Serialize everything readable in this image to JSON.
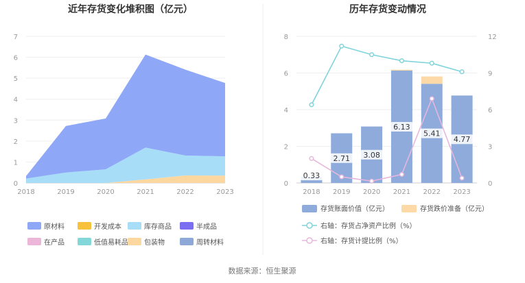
{
  "source_text": "数据来源：恒生聚源",
  "chart_data": [
    {
      "type": "area",
      "title": "近年存货变化堆积图（亿元）",
      "categories": [
        "2018",
        "2019",
        "2020",
        "2021",
        "2022",
        "2023"
      ],
      "ylim": [
        0,
        7
      ],
      "yticks": [
        "0",
        "1",
        "2",
        "3",
        "4",
        "5",
        "6",
        "7"
      ],
      "stacked": true,
      "grid": true,
      "legend_position": "bottom",
      "series": [
        {
          "name": "原材料",
          "color": "#8ea8f7",
          "values": [
            0.12,
            2.22,
            2.43,
            4.44,
            4.1,
            3.5
          ]
        },
        {
          "name": "开发成本",
          "color": "#f8c13c",
          "values": [
            0,
            0,
            0,
            0,
            0,
            0
          ]
        },
        {
          "name": "库存商品",
          "color": "#a8ddf8",
          "values": [
            0.21,
            0.5,
            0.65,
            1.52,
            0.95,
            0.92
          ]
        },
        {
          "name": "半成品",
          "color": "#7b6ef0",
          "values": [
            0,
            0,
            0,
            0,
            0,
            0
          ]
        },
        {
          "name": "在产品",
          "color": "#ebb6d8",
          "values": [
            0,
            0,
            0,
            0,
            0,
            0
          ]
        },
        {
          "name": "低值易耗品",
          "color": "#83d7d9",
          "values": [
            0,
            0,
            0,
            0,
            0,
            0
          ]
        },
        {
          "name": "包装物",
          "color": "#fcd7a0",
          "values": [
            0,
            0,
            0,
            0.17,
            0.36,
            0.35
          ]
        },
        {
          "name": "周转材料",
          "color": "#8ea9d8",
          "values": [
            0,
            0,
            0,
            0,
            0,
            0
          ]
        }
      ]
    },
    {
      "type": "bar",
      "title": "历年存货变动情况",
      "categories": [
        "2018",
        "2019",
        "2020",
        "2021",
        "2022",
        "2023"
      ],
      "ylim_left": [
        0,
        8
      ],
      "yticks_left": [
        "0",
        "2",
        "4",
        "6",
        "8"
      ],
      "ylim_right": [
        0,
        12
      ],
      "yticks_right": [
        "0",
        "3",
        "6",
        "9",
        "12"
      ],
      "grid": true,
      "legend_position": "bottom",
      "series": [
        {
          "name": "存货账面价值（亿元）",
          "color": "#8eabdb",
          "axis": "left",
          "kind": "bar",
          "values": [
            0.33,
            2.71,
            3.08,
            6.13,
            5.41,
            4.77
          ],
          "labels": [
            "0.33",
            "2.71",
            "3.08",
            "6.13",
            "5.41",
            "4.77"
          ]
        },
        {
          "name": "存货跌价准备（亿元）",
          "color": "#fcd9a6",
          "axis": "left",
          "kind": "bar",
          "values": [
            0,
            0,
            0,
            0.05,
            0.4,
            0
          ]
        },
        {
          "name": "右轴：存货占净资产比例（%）",
          "color": "#7fd3da",
          "axis": "right",
          "kind": "line",
          "values": [
            6.4,
            11.2,
            10.5,
            10.0,
            9.8,
            9.1
          ]
        },
        {
          "name": "右轴：存货计提比例（%）",
          "color": "#e6b7dc",
          "axis": "right",
          "kind": "line",
          "values": [
            2.0,
            0.5,
            0.15,
            0.7,
            6.9,
            0.4
          ]
        }
      ]
    }
  ]
}
